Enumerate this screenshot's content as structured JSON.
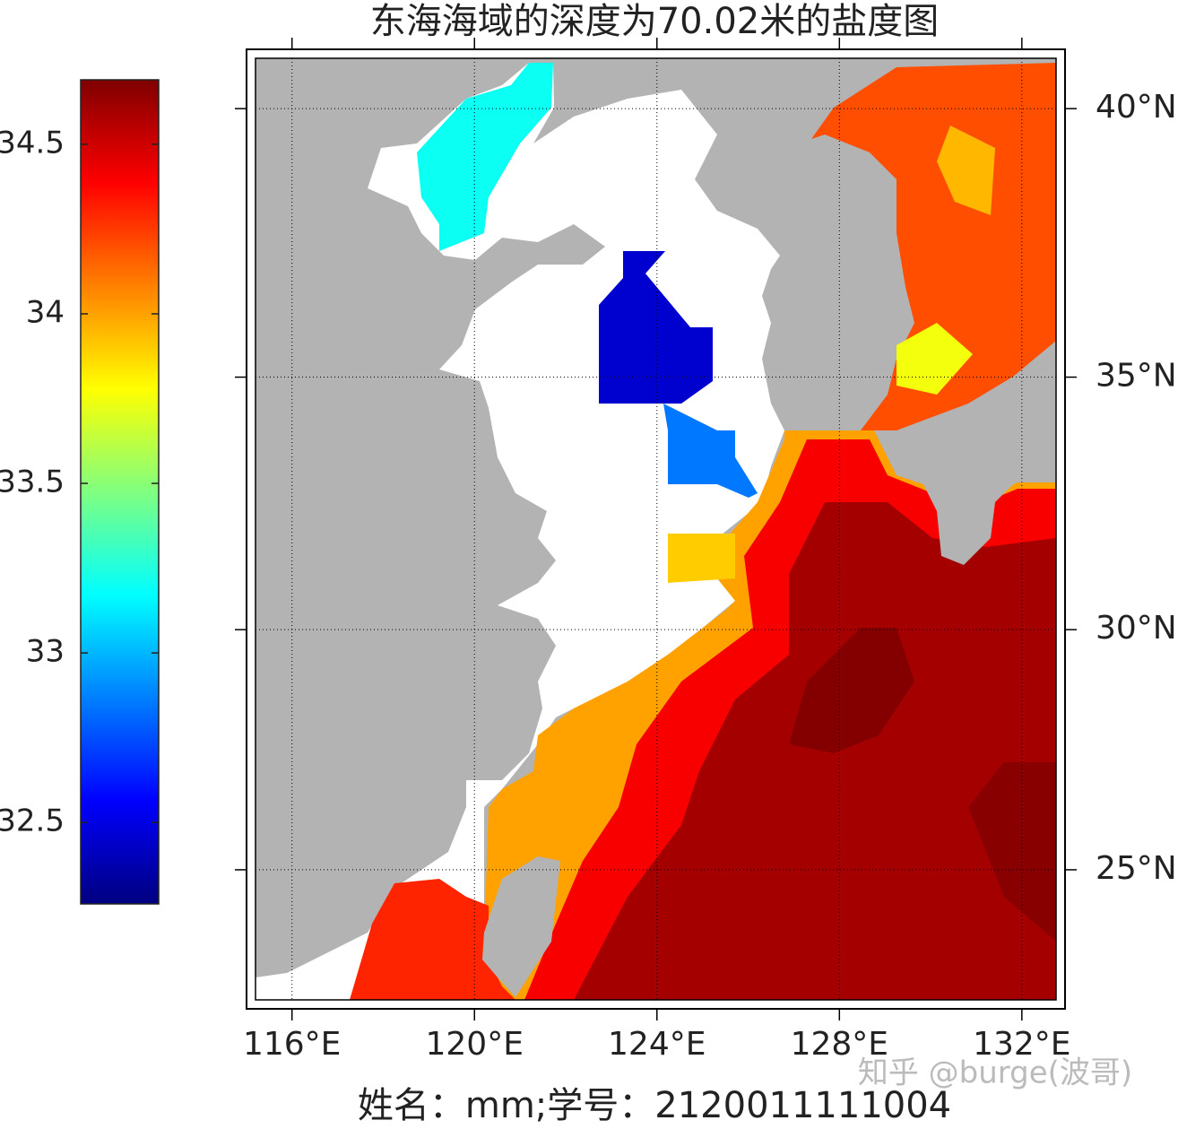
{
  "chart_data": {
    "type": "map",
    "title": "东海海域的深度为70.02米的盐度图",
    "xlabel": "姓名：mm;学号：2120011111004",
    "watermark": "知乎 @burge(波哥)",
    "projection": "mercator",
    "xlim": [
      115.2,
      132.75
    ],
    "ylim": [
      22.2,
      40.9
    ],
    "xticks": [
      {
        "value": 116,
        "label": "116°E"
      },
      {
        "value": 120,
        "label": "120°E"
      },
      {
        "value": 124,
        "label": "124°E"
      },
      {
        "value": 128,
        "label": "128°E"
      },
      {
        "value": 132,
        "label": "132°E"
      }
    ],
    "yticks": [
      {
        "value": 25,
        "label": "25°N"
      },
      {
        "value": 30,
        "label": "30°N"
      },
      {
        "value": 35,
        "label": "35°N"
      },
      {
        "value": 40,
        "label": "40°N"
      }
    ],
    "grid": true,
    "colormap": "jet",
    "clim": [
      32.26,
      34.69
    ],
    "cticks": [
      32.5,
      33,
      33.5,
      34,
      34.5
    ],
    "salinity_regions": [
      {
        "value": 34.0
      },
      {
        "value": 34.4
      },
      {
        "value": 34.6
      },
      {
        "value": 34.68
      },
      {
        "value": 34.67
      },
      {
        "value": 34.3
      },
      {
        "value": 33.9
      },
      {
        "value": 34.2
      },
      {
        "value": 33.95
      },
      {
        "value": 33.75
      },
      {
        "value": 33.2
      },
      {
        "value": 32.45
      },
      {
        "value": 32.85
      }
    ]
  }
}
